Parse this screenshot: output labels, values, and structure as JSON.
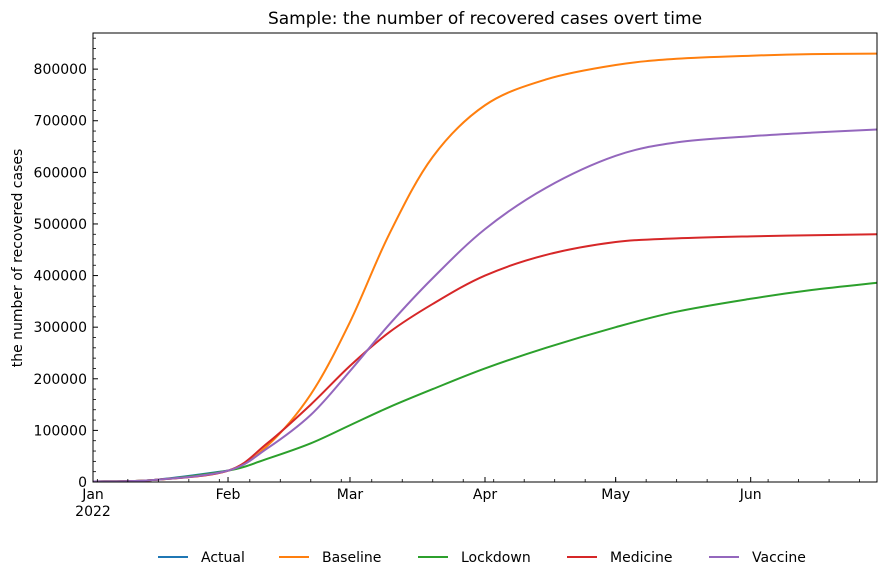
{
  "chart_data": {
    "type": "line",
    "title": "Sample: the number of recovered cases overt time",
    "xlabel": "",
    "ylabel": "the number of recovered cases",
    "x_ticks": [
      "Jan",
      "Feb",
      "Mar",
      "Apr",
      "May",
      "Jun"
    ],
    "x_year_label": "2022",
    "xlim": [
      "2022-01-01",
      "2022-06-30"
    ],
    "ylim": [
      0,
      870000
    ],
    "y_ticks": [
      0,
      100000,
      200000,
      300000,
      400000,
      500000,
      600000,
      700000,
      800000
    ],
    "grid": false,
    "legend_position": "bottom",
    "x": [
      "2022-01-01",
      "2022-01-15",
      "2022-02-01",
      "2022-02-10",
      "2022-02-20",
      "2022-03-01",
      "2022-03-10",
      "2022-03-20",
      "2022-04-01",
      "2022-04-15",
      "2022-05-01",
      "2022-05-15",
      "2022-06-01",
      "2022-06-15",
      "2022-06-30"
    ],
    "series": [
      {
        "name": "Actual",
        "color": "#1f77b4",
        "values": [
          1000,
          4000,
          22000,
          null,
          null,
          null,
          null,
          null,
          null,
          null,
          null,
          null,
          null,
          null,
          null
        ]
      },
      {
        "name": "Baseline",
        "color": "#ff7f0e",
        "values": [
          1000,
          4000,
          22000,
          70000,
          170000,
          310000,
          480000,
          630000,
          730000,
          780000,
          808000,
          820000,
          826000,
          829000,
          830000
        ]
      },
      {
        "name": "Lockdown",
        "color": "#2ca02c",
        "values": [
          1000,
          4000,
          22000,
          45000,
          75000,
          110000,
          145000,
          180000,
          220000,
          260000,
          300000,
          330000,
          355000,
          372000,
          386000
        ]
      },
      {
        "name": "Medicine",
        "color": "#d62728",
        "values": [
          1000,
          4000,
          22000,
          75000,
          150000,
          225000,
          290000,
          345000,
          400000,
          440000,
          465000,
          472000,
          476000,
          478000,
          480000
        ]
      },
      {
        "name": "Vaccine",
        "color": "#9467bd",
        "values": [
          1000,
          4000,
          22000,
          65000,
          130000,
          215000,
          305000,
          395000,
          490000,
          570000,
          632000,
          658000,
          670000,
          677000,
          683000
        ]
      }
    ]
  }
}
